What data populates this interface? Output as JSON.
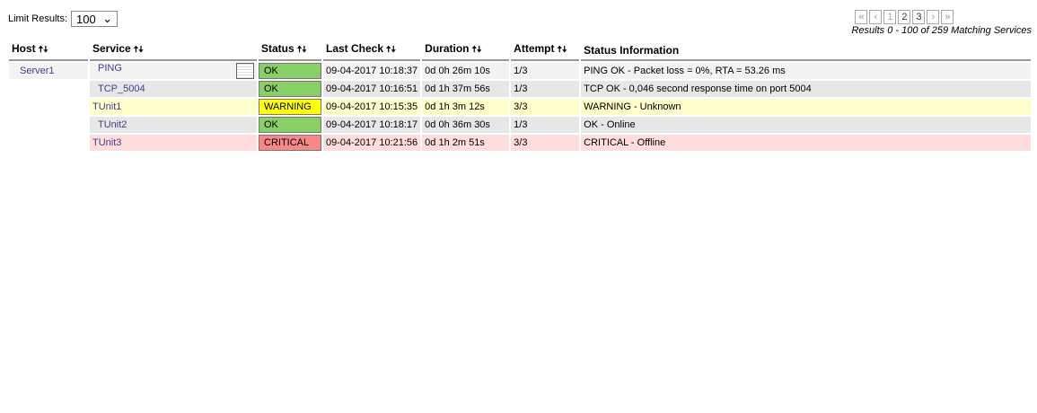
{
  "limit": {
    "label": "Limit Results:",
    "value": "100"
  },
  "pager": {
    "pages": [
      "1",
      "2",
      "3"
    ],
    "current": "1",
    "results": "Results 0 - 100 of 259 Matching Services"
  },
  "columns": [
    "Host",
    "Service",
    "Status",
    "Last Check",
    "Duration",
    "Attempt",
    "Status Information"
  ],
  "rows": [
    {
      "host": "Server1",
      "service": "PING",
      "status": "OK",
      "last_check": "09-04-2017 10:18:37",
      "duration": "0d 0h 26m 10s",
      "attempt": "1/3",
      "info": "PING OK - Packet loss = 0%, RTA = 53.26 ms",
      "graph": true
    },
    {
      "host": "",
      "service": "TCP_5004",
      "status": "OK",
      "last_check": "09-04-2017 10:16:51",
      "duration": "0d 1h 37m 56s",
      "attempt": "1/3",
      "info": "TCP OK - 0,046 second response time on port 5004"
    },
    {
      "host": "",
      "service": "TUnit1",
      "status": "WARNING",
      "last_check": "09-04-2017 10:15:35",
      "duration": "0d 1h 3m 12s",
      "attempt": "3/3",
      "info": "WARNING - Unknown"
    },
    {
      "host": "",
      "service": "TUnit2",
      "status": "OK",
      "last_check": "09-04-2017 10:18:17",
      "duration": "0d 0h 36m 30s",
      "attempt": "1/3",
      "info": "OK - Online"
    },
    {
      "host": "",
      "service": "TUnit3",
      "status": "CRITICAL",
      "last_check": "09-04-2017 10:21:56",
      "duration": "0d 1h 2m 51s",
      "attempt": "3/3",
      "info": "CRITICAL - Offline"
    }
  ],
  "colors": {
    "ok": "#88d066",
    "warning": "#ffff00",
    "critical": "#f88888"
  }
}
